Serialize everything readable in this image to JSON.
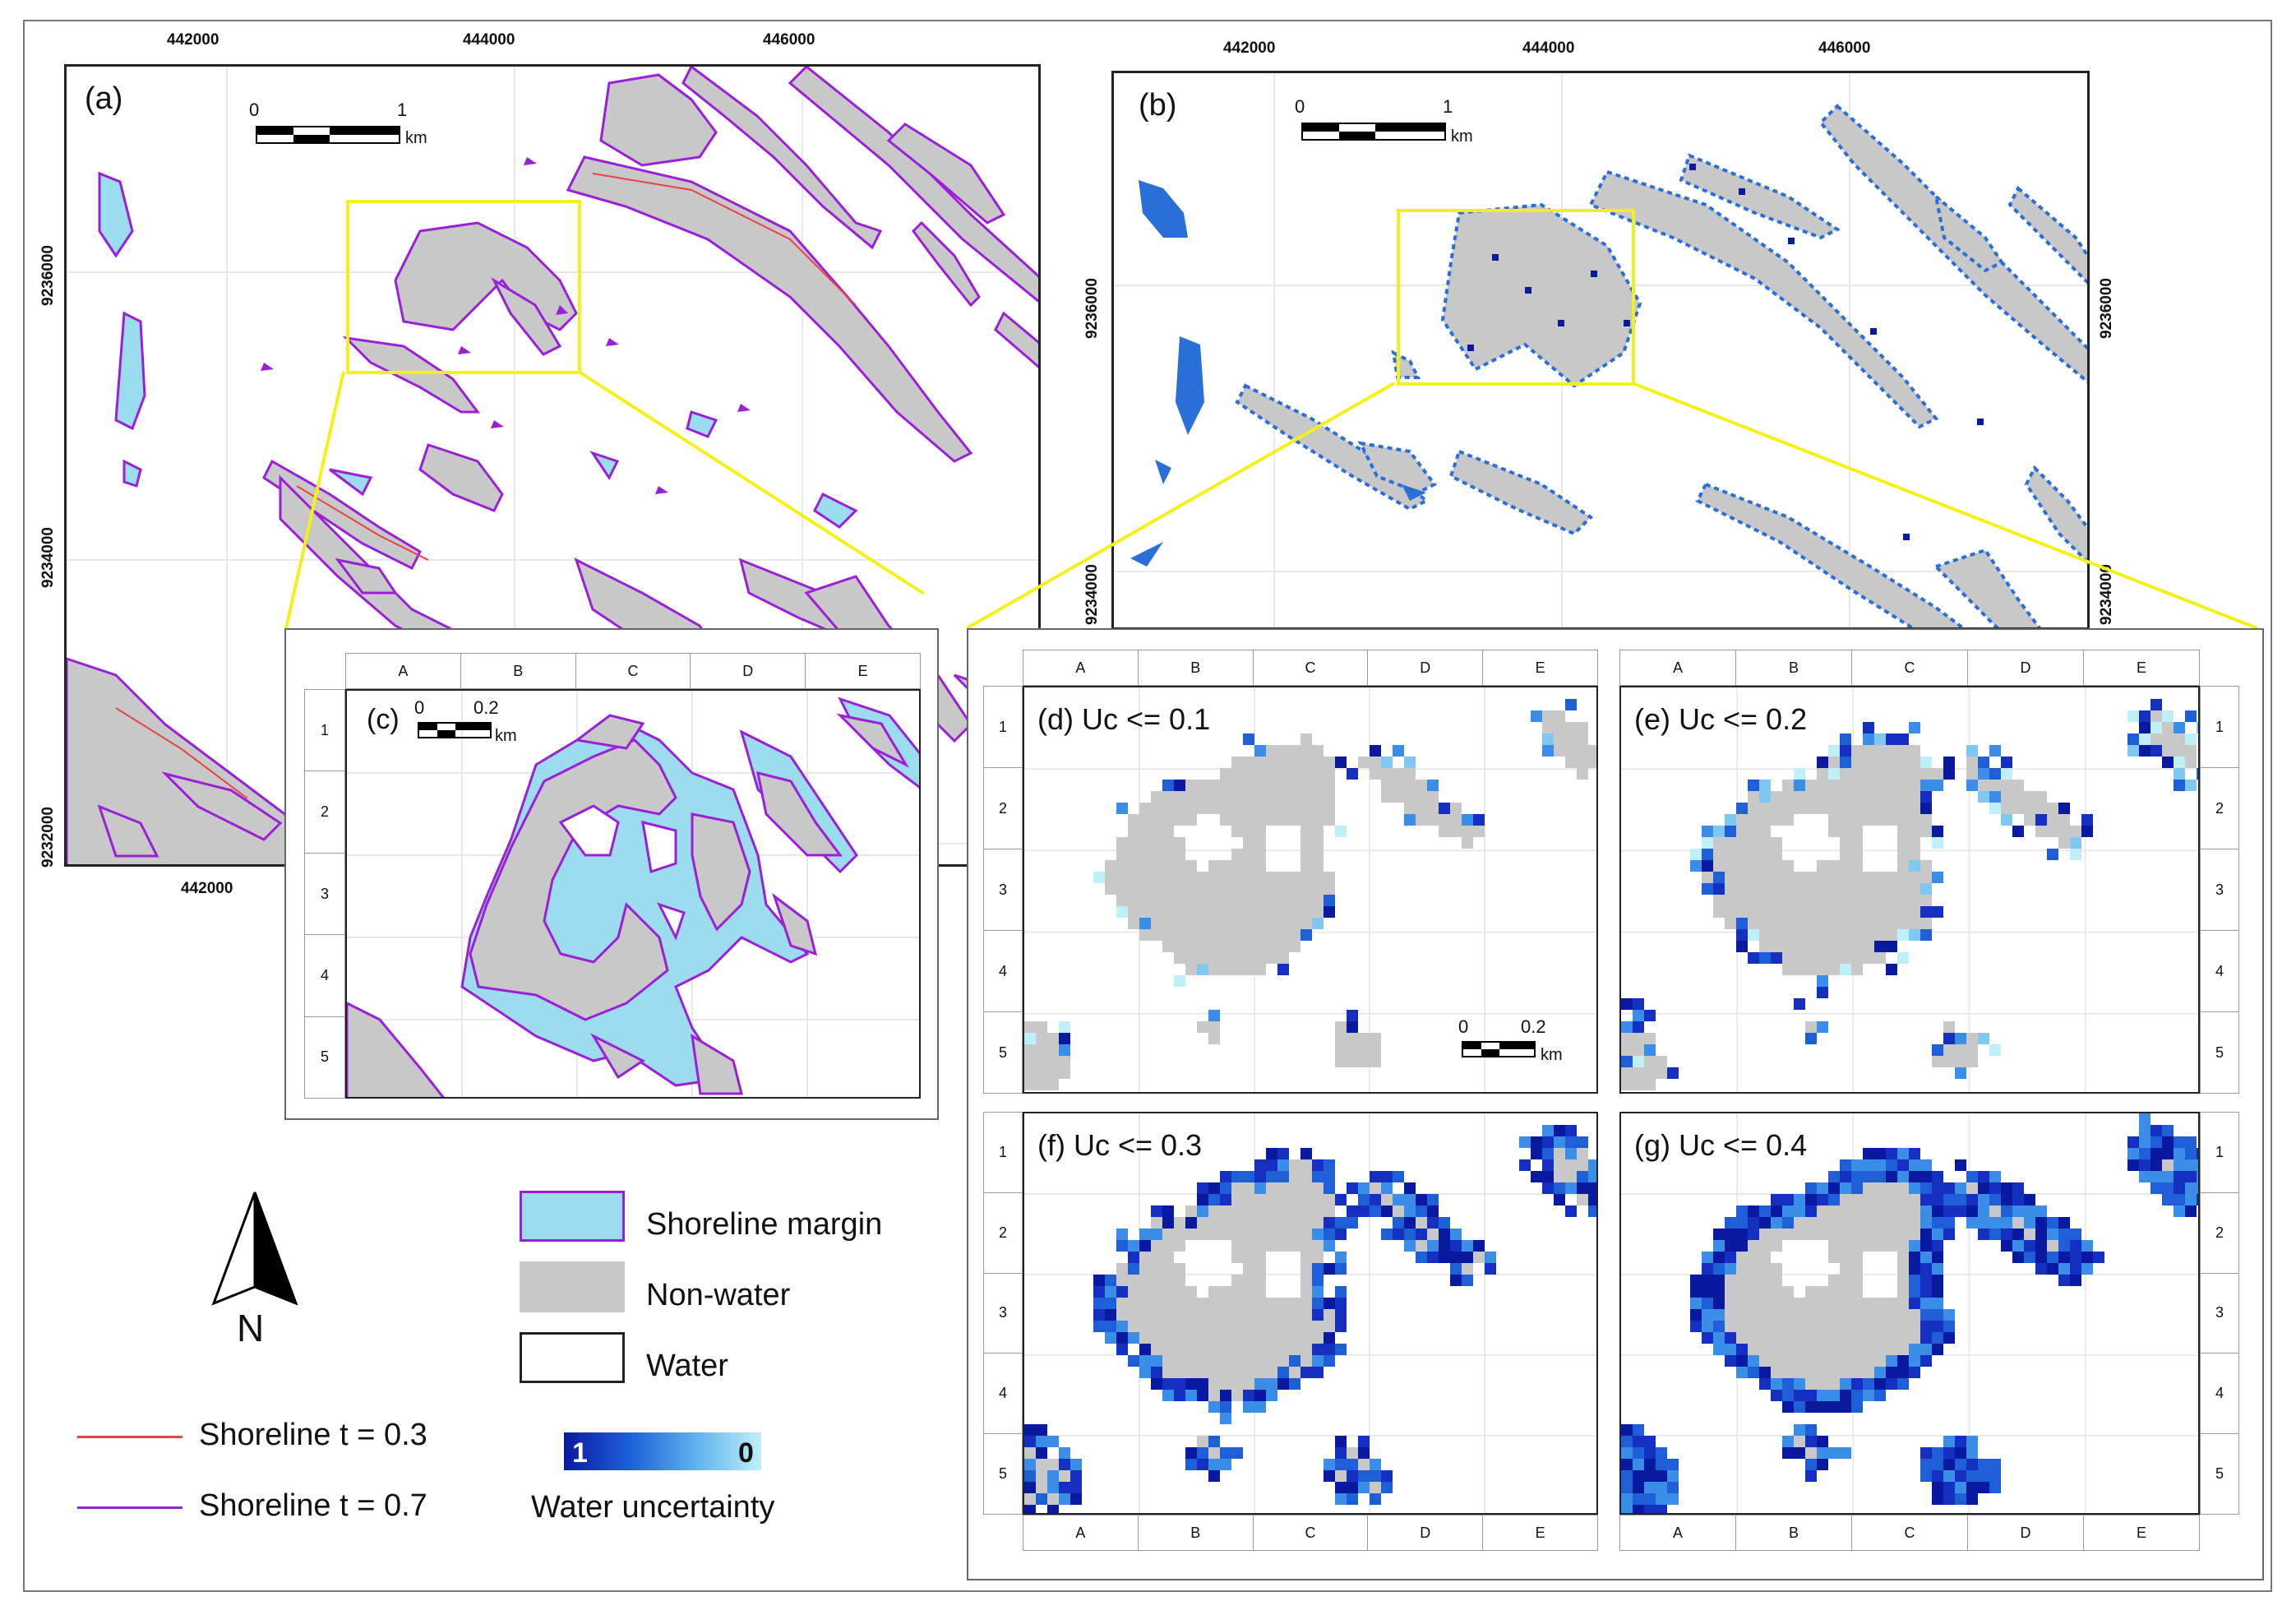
{
  "panels": {
    "a": {
      "label": "(a)"
    },
    "b": {
      "label": "(b)"
    },
    "c": {
      "label": "(c)"
    },
    "d": {
      "label": "(d) Uc <= 0.1"
    },
    "e": {
      "label": "(e) Uc <= 0.2"
    },
    "f": {
      "label": "(f) Uc <= 0.3"
    },
    "g": {
      "label": "(g) Uc <= 0.4"
    }
  },
  "axes": {
    "easting": [
      "442000",
      "444000",
      "446000"
    ],
    "northing": [
      "9236000",
      "9234000",
      "9232000"
    ]
  },
  "scale_main": {
    "zero": "0",
    "one": "1",
    "unit": "km"
  },
  "scale_inset": {
    "zero": "0",
    "one": "0.2",
    "unit": "km"
  },
  "grid": {
    "columns": [
      "A",
      "B",
      "C",
      "D",
      "E"
    ],
    "rows": [
      "1",
      "2",
      "3",
      "4",
      "5"
    ]
  },
  "north_arrow": {
    "label": "N"
  },
  "legend": {
    "shoreline_margin": "Shoreline margin",
    "non_water": "Non-water",
    "water": "Water",
    "shoreline_03": "Shoreline t = 0.3",
    "shoreline_07": "Shoreline t = 0.7",
    "uncertainty_min": "1",
    "uncertainty_max": "0",
    "uncertainty_title": "Water uncertainty"
  },
  "colors": {
    "non_water": "#c8c8c8",
    "margin": "#9bdcef",
    "shoreline_03": "#e8424a",
    "shoreline_07": "#9b1fd8",
    "highlight": "#f4f01a",
    "unc_high": "#0a1aa0",
    "unc_low": "#bff0f8"
  }
}
